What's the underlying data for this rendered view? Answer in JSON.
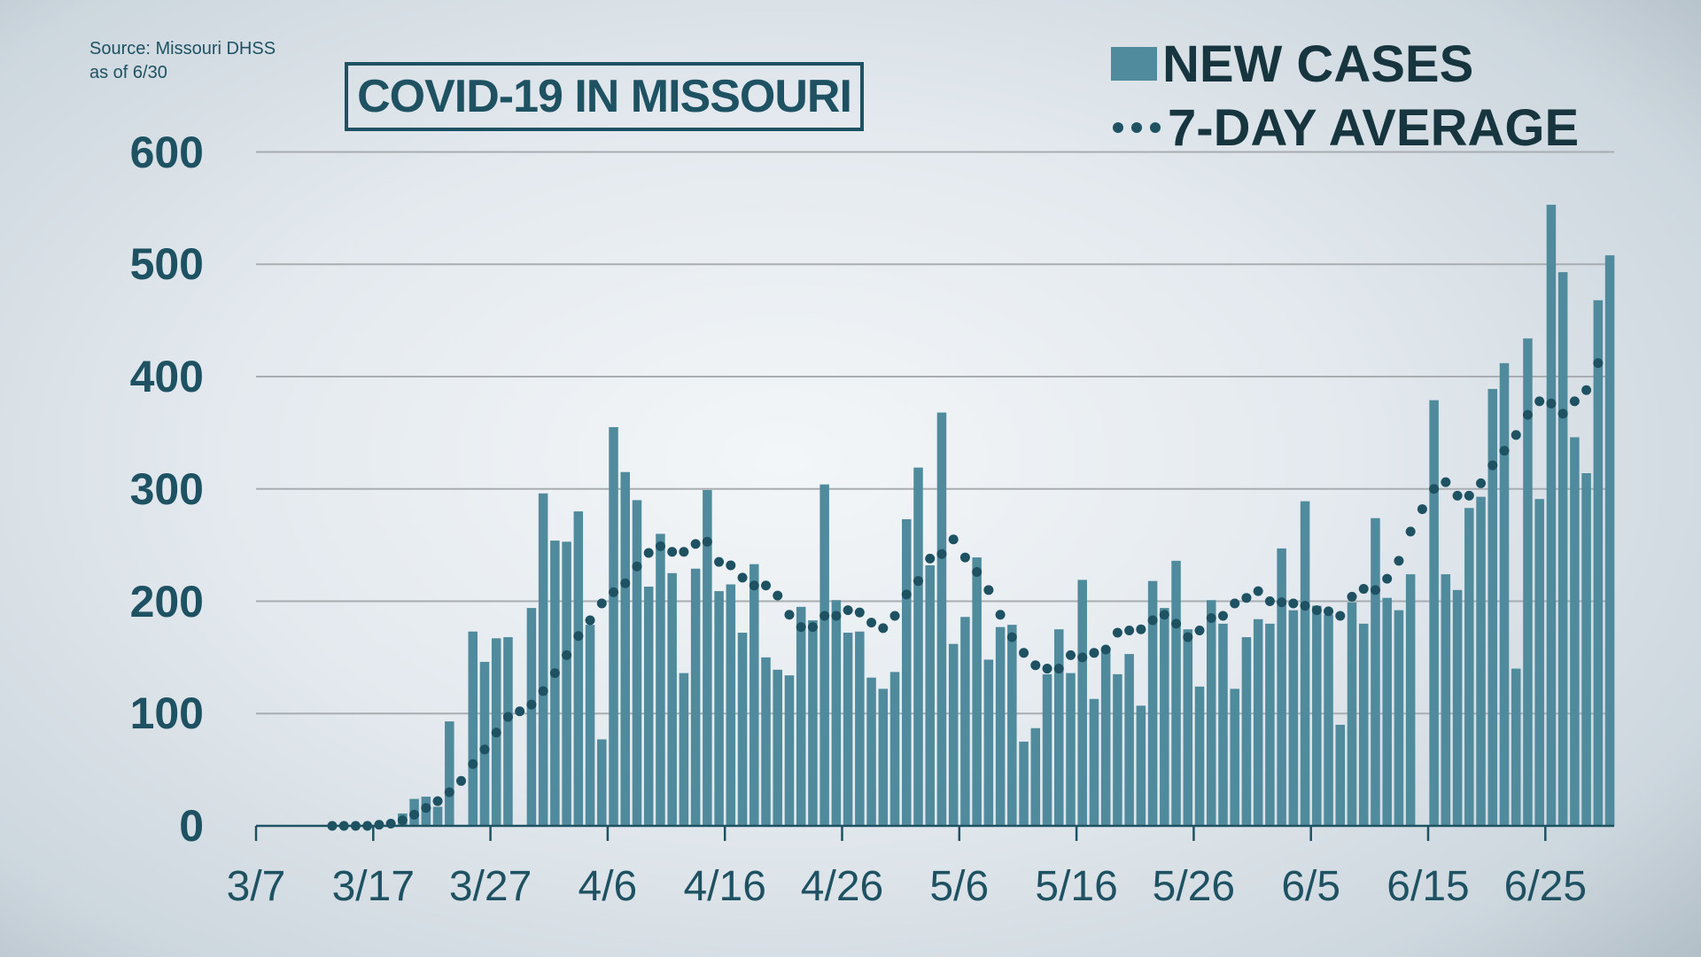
{
  "source": {
    "line1": "Source: Missouri DHSS",
    "line2": "as of 6/30"
  },
  "title": "COVID-19 IN MISSOURI",
  "legend": [
    {
      "label": "NEW CASES",
      "type": "bar",
      "color": "#508b9d"
    },
    {
      "label": "7-DAY AVERAGE",
      "type": "dotted",
      "color": "#1e5263"
    }
  ],
  "colors": {
    "bar": "#508b9d",
    "avg": "#1e5263",
    "text": "#1e5263",
    "grid": "#a7adb1",
    "axis": "#1e5263"
  },
  "y_axis": {
    "ticks": [
      "0",
      "100",
      "200",
      "300",
      "400",
      "500",
      "600"
    ]
  },
  "x_axis": {
    "ticks": [
      "3/7",
      "3/17",
      "3/27",
      "4/6",
      "4/16",
      "4/26",
      "5/6",
      "5/16",
      "5/26",
      "6/5",
      "6/15",
      "6/25"
    ]
  },
  "chart_data": {
    "type": "bar",
    "title": "COVID-19 IN MISSOURI",
    "subtitle": "Source: Missouri DHSS as of 6/30",
    "xlabel": "",
    "ylabel": "",
    "ylim": [
      0,
      600
    ],
    "grid": true,
    "legend_position": "top-right",
    "x_start": "3/7",
    "x_end": "6/30",
    "x_tick_labels": [
      "3/7",
      "3/17",
      "3/27",
      "4/6",
      "4/16",
      "4/26",
      "5/6",
      "5/16",
      "5/26",
      "6/5",
      "6/15",
      "6/25"
    ],
    "y_tick_labels": [
      "0",
      "100",
      "200",
      "300",
      "400",
      "500",
      "600"
    ],
    "series": [
      {
        "name": "NEW CASES",
        "type": "bar",
        "start_day_offset": 12,
        "values": [
          11,
          24,
          26,
          17,
          93,
          0,
          173,
          146,
          167,
          168,
          0,
          194,
          296,
          254,
          253,
          280,
          179,
          77,
          355,
          315,
          290,
          213,
          260,
          225,
          136,
          229,
          299,
          209,
          215,
          172,
          233,
          150,
          139,
          134,
          195,
          183,
          304,
          201,
          172,
          173,
          132,
          122,
          137,
          273,
          319,
          232,
          368,
          162,
          186,
          239,
          148,
          177,
          179,
          75,
          87,
          135,
          175,
          136,
          219,
          113,
          155,
          135,
          153,
          107,
          218,
          194,
          236,
          175,
          124,
          201,
          180,
          122,
          168,
          184,
          180,
          247,
          192,
          289,
          196,
          188,
          90,
          199,
          180,
          274,
          203,
          192,
          224,
          0,
          379,
          224,
          210,
          283,
          293,
          389,
          412,
          140,
          434,
          291,
          553,
          493,
          346,
          314,
          468,
          508
        ]
      },
      {
        "name": "7-DAY AVERAGE",
        "type": "dotted-line",
        "start_day_offset": 6,
        "values": [
          0,
          0,
          0,
          0,
          1,
          2,
          5,
          10,
          16,
          22,
          30,
          40,
          55,
          68,
          83,
          97,
          102,
          108,
          120,
          136,
          152,
          169,
          183,
          198,
          208,
          216,
          231,
          243,
          249,
          244,
          244,
          251,
          253,
          235,
          232,
          221,
          214,
          214,
          205,
          188,
          177,
          177,
          187,
          187,
          192,
          190,
          181,
          176,
          187,
          206,
          218,
          238,
          242,
          255,
          239,
          226,
          210,
          188,
          168,
          154,
          143,
          140,
          140,
          152,
          150,
          154,
          157,
          172,
          174,
          175,
          183,
          188,
          180,
          168,
          174,
          185,
          187,
          198,
          203,
          209,
          200,
          199,
          198,
          196,
          192,
          191,
          187,
          204,
          211,
          210,
          220,
          236,
          262,
          282,
          300,
          306,
          294,
          294,
          305,
          321,
          334,
          348,
          366,
          378,
          376,
          367,
          378,
          388,
          412
        ]
      }
    ]
  }
}
